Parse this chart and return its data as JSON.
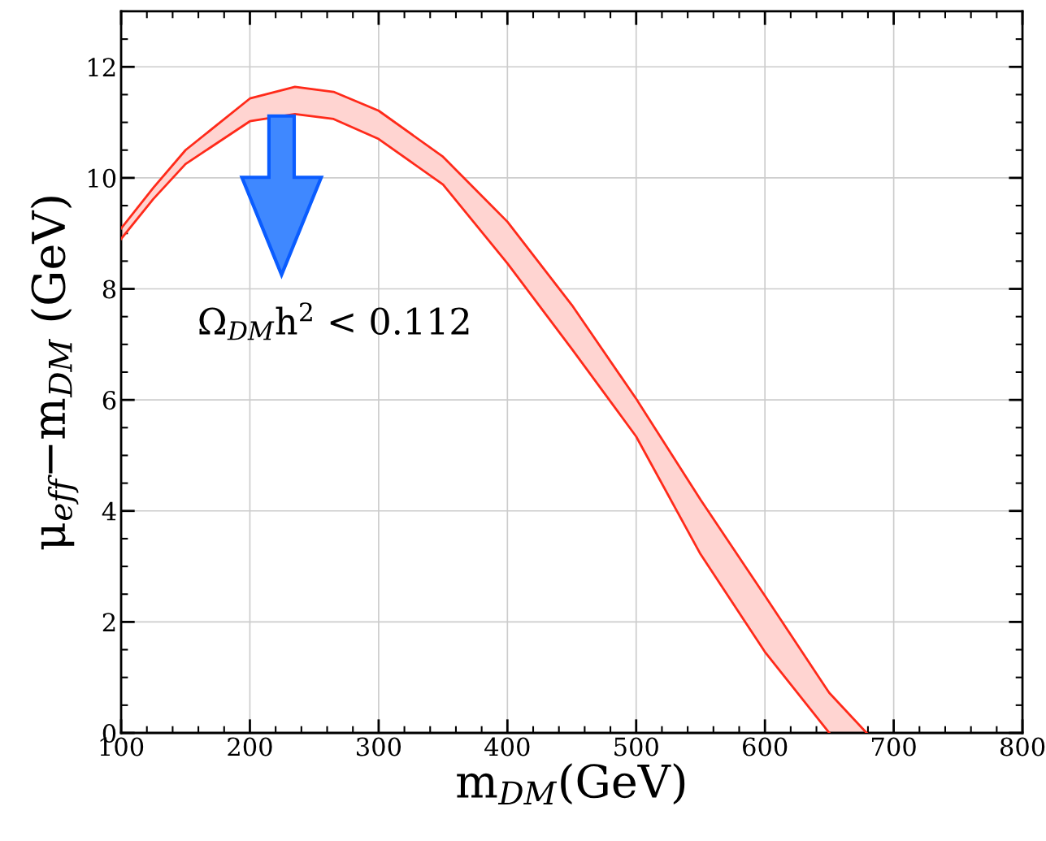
{
  "chart_data": {
    "type": "line",
    "xlabel": "m$_{DM}$(GeV)",
    "ylabel": "μ$_{eff}$−m$_{DM}$ (GeV)",
    "series": [
      {
        "color": "#ff2a1a",
        "x": [
          100,
          125,
          150,
          200,
          235,
          265,
          300,
          350,
          400,
          450,
          500,
          550,
          600,
          650,
          679
        ],
        "values": [
          9.09,
          9.82,
          10.5,
          11.43,
          11.64,
          11.55,
          11.21,
          10.38,
          9.21,
          7.71,
          6.02,
          4.2,
          2.47,
          0.72,
          0
        ],
        "upper": [
          9.09,
          9.82,
          10.5,
          11.43,
          11.64,
          11.55,
          11.21,
          10.38,
          9.21,
          7.71,
          6.02,
          4.2,
          2.47,
          0.72,
          0
        ],
        "lower": [
          8.9,
          9.62,
          10.25,
          11.02,
          11.15,
          11.06,
          10.7,
          9.88,
          8.46,
          6.92,
          5.34,
          3.22,
          1.46,
          0,
          0
        ]
      },
      {
        "color": "#ff2a1a",
        "x": [
          100,
          125,
          150,
          200,
          235,
          265,
          300,
          350,
          400,
          450,
          500,
          550,
          600,
          650
        ],
        "values": [
          8.9,
          9.62,
          10.25,
          11.02,
          11.15,
          11.06,
          10.7,
          9.88,
          8.46,
          6.92,
          5.34,
          3.22,
          1.46,
          0
        ]
      }
    ],
    "annotations": [
      "Ω$_{DM}$h$^{2}$ < 0.112"
    ],
    "xlim": [
      100,
      800
    ],
    "ylim": [
      0,
      13
    ],
    "xticks": [
      100,
      200,
      300,
      400,
      500,
      600,
      700,
      800
    ],
    "yticks": [
      0,
      2,
      4,
      6,
      8,
      10,
      12
    ],
    "grid": true
  }
}
